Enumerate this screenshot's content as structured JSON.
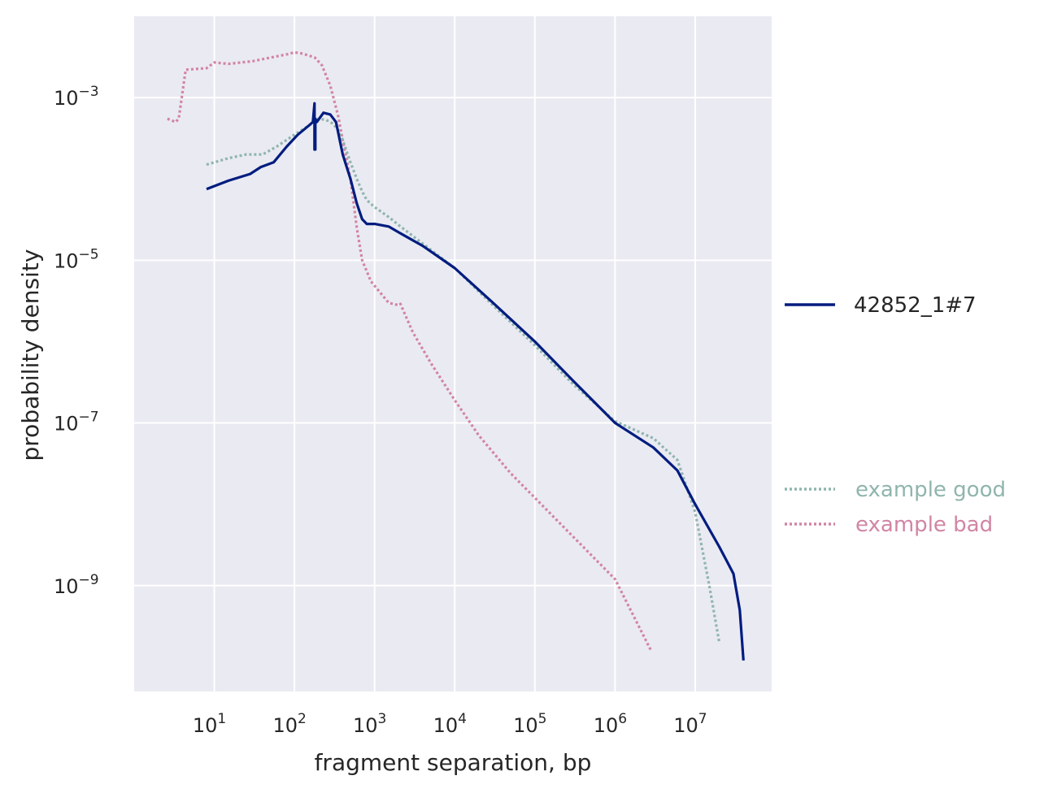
{
  "chart_data": {
    "type": "line",
    "title": "",
    "xlabel": "fragment separation, bp",
    "ylabel": "probability density",
    "x_scale": "log",
    "y_scale": "log",
    "xlim": [
      1.0,
      90000000
    ],
    "ylim": [
      5e-11,
      0.01
    ],
    "x_ticks": [
      {
        "value": 10,
        "base": "10",
        "exp": "1"
      },
      {
        "value": 100,
        "base": "10",
        "exp": "2"
      },
      {
        "value": 1000,
        "base": "10",
        "exp": "3"
      },
      {
        "value": 10000,
        "base": "10",
        "exp": "4"
      },
      {
        "value": 100000,
        "base": "10",
        "exp": "5"
      },
      {
        "value": 1000000,
        "base": "10",
        "exp": "6"
      },
      {
        "value": 10000000,
        "base": "10",
        "exp": "7"
      }
    ],
    "y_ticks": [
      {
        "value": 0.001,
        "base": "10",
        "exp": "−3"
      },
      {
        "value": 1e-05,
        "base": "10",
        "exp": "−5"
      },
      {
        "value": 1e-07,
        "base": "10",
        "exp": "−7"
      },
      {
        "value": 1e-09,
        "base": "10",
        "exp": "−9"
      }
    ],
    "grid": true,
    "background": "#eaeaf2",
    "legend": [
      {
        "label": "42852_1#7",
        "color": "#001c7f",
        "style": "solid",
        "position": "right-middle"
      },
      {
        "label": "example good",
        "color": "#8fb5ad",
        "style": "dotted",
        "position": "right-lower"
      },
      {
        "label": "example bad",
        "color": "#d185a4",
        "style": "dotted",
        "position": "right-lower"
      }
    ],
    "series": [
      {
        "name": "42852_1#7",
        "color": "#001c7f",
        "style": "solid",
        "x": [
          8,
          15,
          28,
          38,
          55,
          80,
          110,
          150,
          170,
          178,
          178,
          182,
          182,
          190,
          230,
          280,
          330,
          400,
          500,
          600,
          700,
          800,
          1000,
          1500,
          2000,
          4000,
          10000,
          30000,
          100000,
          300000,
          1000000,
          3000000,
          6000000,
          10000000,
          20000000,
          30000000,
          36000000,
          40000000
        ],
        "y": [
          7.5e-05,
          9.5e-05,
          0.000115,
          0.00014,
          0.00016,
          0.00025,
          0.00035,
          0.00045,
          0.0005,
          0.00085,
          0.00023,
          0.00023,
          0.00055,
          0.0005,
          0.00065,
          0.00062,
          0.0005,
          0.0002,
          0.0001,
          5e-05,
          3.2e-05,
          2.8e-05,
          2.8e-05,
          2.6e-05,
          2.2e-05,
          1.5e-05,
          8e-06,
          3e-06,
          1e-06,
          3.3e-07,
          1e-07,
          5e-08,
          2.6e-08,
          1e-08,
          3e-09,
          1.4e-09,
          5e-10,
          1.2e-10
        ]
      },
      {
        "name": "example good",
        "color": "#8fb5ad",
        "style": "dotted",
        "x": [
          8,
          15,
          25,
          40,
          60,
          100,
          150,
          200,
          250,
          300,
          350,
          400,
          500,
          600,
          700,
          800,
          1000,
          1500,
          2000,
          4000,
          10000,
          30000,
          100000,
          300000,
          1000000,
          3000000,
          6000000,
          10000000,
          15000000,
          20000000
        ],
        "y": [
          0.00015,
          0.00018,
          0.0002,
          0.0002,
          0.00025,
          0.00035,
          0.00045,
          0.00055,
          0.00053,
          0.00048,
          0.0004,
          0.0003,
          0.00016,
          0.0001,
          7e-05,
          5.5e-05,
          4.5e-05,
          3.4e-05,
          2.7e-05,
          1.6e-05,
          8e-06,
          2.8e-06,
          9e-07,
          3e-07,
          1.05e-07,
          6.5e-08,
          3.5e-08,
          8e-09,
          1e-09,
          2e-10
        ]
      },
      {
        "name": "example bad",
        "color": "#d185a4",
        "style": "dotted",
        "x": [
          2.6,
          3.3,
          3.6,
          4.4,
          8,
          10,
          15,
          30,
          50,
          80,
          100,
          120,
          150,
          180,
          220,
          280,
          350,
          400,
          500,
          600,
          700,
          900,
          1500,
          2000,
          2100,
          3000,
          5000,
          10000,
          20000,
          50000,
          100000,
          300000,
          1000000,
          2800000
        ],
        "y": [
          0.00055,
          0.0005,
          0.00055,
          0.0022,
          0.0023,
          0.0027,
          0.0026,
          0.0028,
          0.0031,
          0.0034,
          0.0036,
          0.0035,
          0.0033,
          0.0031,
          0.0025,
          0.0014,
          0.0006,
          0.0003,
          0.0001,
          2.5e-05,
          1e-05,
          5.5e-06,
          3e-06,
          2.8e-06,
          2.9e-06,
          1.3e-06,
          5.5e-07,
          1.9e-07,
          7e-08,
          2.4e-08,
          1.2e-08,
          4e-09,
          1.2e-09,
          1.6e-10
        ]
      }
    ]
  }
}
